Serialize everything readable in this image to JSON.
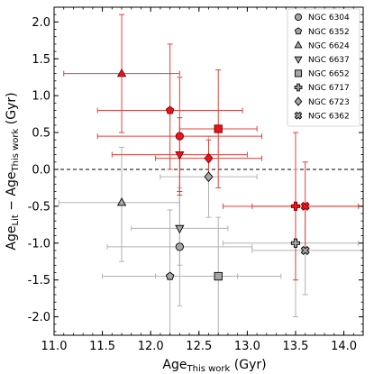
{
  "chart_data": {
    "type": "scatter",
    "xlabel": {
      "main": "Age",
      "sub": "This work",
      "unit": " (Gyr)"
    },
    "ylabel": {
      "left": "Age",
      "left_sub": "Lit",
      "mid": " − Age",
      "mid_sub": "This work",
      "unit": " (Gyr)"
    },
    "xlim": [
      11.0,
      14.2
    ],
    "ylim": [
      -2.25,
      2.2
    ],
    "xticks": [
      "11.0",
      "11.5",
      "12.0",
      "12.5",
      "13.0",
      "13.5",
      "14.0"
    ],
    "yticks": [
      "-2.0",
      "-1.5",
      "-1.0",
      "-0.5",
      "0.0",
      "0.5",
      "1.0",
      "1.5",
      "2.0"
    ],
    "reference_line": {
      "y": 0.0,
      "style": "dashed"
    },
    "legend_placement": "top-right",
    "colors": {
      "red_fill": "#e8141b",
      "red_edge": "#7a0000",
      "red_err": "#e0403c",
      "gray_fill": "#a6a6a6",
      "gray_err": "#b3b3b3",
      "edge": "#000000"
    },
    "series": [
      {
        "name": "NGC 6304",
        "marker": "circle",
        "literature": {
          "x": 12.3,
          "y": 0.45,
          "xerr": [
            0.85,
            0.85
          ],
          "yerr": [
            0.8,
            0.8
          ]
        },
        "this_work": {
          "x": 12.3,
          "y": -1.05,
          "xerr": [
            0.75,
            0.75
          ],
          "yerr": [
            0.8,
            0.8
          ]
        }
      },
      {
        "name": "NGC 6352",
        "marker": "pentagon",
        "literature": {
          "x": 12.2,
          "y": 0.8,
          "xerr": [
            0.75,
            0.75
          ],
          "yerr": [
            0.8,
            0.9
          ]
        },
        "this_work": {
          "x": 12.2,
          "y": -1.45,
          "xerr": [
            0.7,
            0.7
          ],
          "yerr": [
            0.8,
            0.9
          ]
        }
      },
      {
        "name": "NGC 6624",
        "marker": "triangle-up",
        "literature": {
          "x": 11.7,
          "y": 1.3,
          "xerr": [
            0.6,
            0.6
          ],
          "yerr": [
            0.8,
            0.8
          ]
        },
        "this_work": {
          "x": 11.7,
          "y": -0.45,
          "xerr": [
            0.65,
            0.6
          ],
          "yerr": [
            0.8,
            0.75
          ]
        }
      },
      {
        "name": "NGC 6637",
        "marker": "triangle-down",
        "literature": {
          "x": 12.3,
          "y": 0.2,
          "xerr": [
            0.7,
            0.7
          ],
          "yerr": [
            0.5,
            0.5
          ]
        },
        "this_work": {
          "x": 12.3,
          "y": -0.8,
          "xerr": [
            0.5,
            0.5
          ],
          "yerr": [
            0.5,
            0.5
          ]
        }
      },
      {
        "name": "NGC 6652",
        "marker": "square",
        "literature": {
          "x": 12.7,
          "y": 0.55,
          "xerr": [
            0.4,
            0.4
          ],
          "yerr": [
            0.8,
            0.8
          ]
        },
        "this_work": {
          "x": 12.7,
          "y": -1.45,
          "xerr": [
            0.65,
            0.65
          ],
          "yerr": [
            0.8,
            0.8
          ]
        }
      },
      {
        "name": "NGC 6717",
        "marker": "plus",
        "literature": {
          "x": 13.5,
          "y": -0.5,
          "xerr": [
            0.75,
            0.65
          ],
          "yerr": [
            1.0,
            1.0
          ]
        },
        "this_work": {
          "x": 13.5,
          "y": -1.0,
          "xerr": [
            0.75,
            0.65
          ],
          "yerr": [
            1.0,
            1.0
          ]
        }
      },
      {
        "name": "NGC 6723",
        "marker": "diamond",
        "literature": {
          "x": 12.6,
          "y": 0.15,
          "xerr": [
            0.55,
            0.55
          ],
          "yerr": [
            0.25,
            0.25
          ]
        },
        "this_work": {
          "x": 12.6,
          "y": -0.1,
          "xerr": [
            0.5,
            0.5
          ],
          "yerr": [
            0.55,
            0.55
          ]
        }
      },
      {
        "name": "NGC 6362",
        "marker": "x",
        "literature": {
          "x": 13.6,
          "y": -0.5,
          "xerr": [
            0.55,
            0.6
          ],
          "yerr": [
            0.6,
            0.6
          ]
        },
        "this_work": {
          "x": 13.6,
          "y": -1.1,
          "xerr": [
            0.55,
            0.6
          ],
          "yerr": [
            0.6,
            0.6
          ]
        }
      }
    ]
  }
}
